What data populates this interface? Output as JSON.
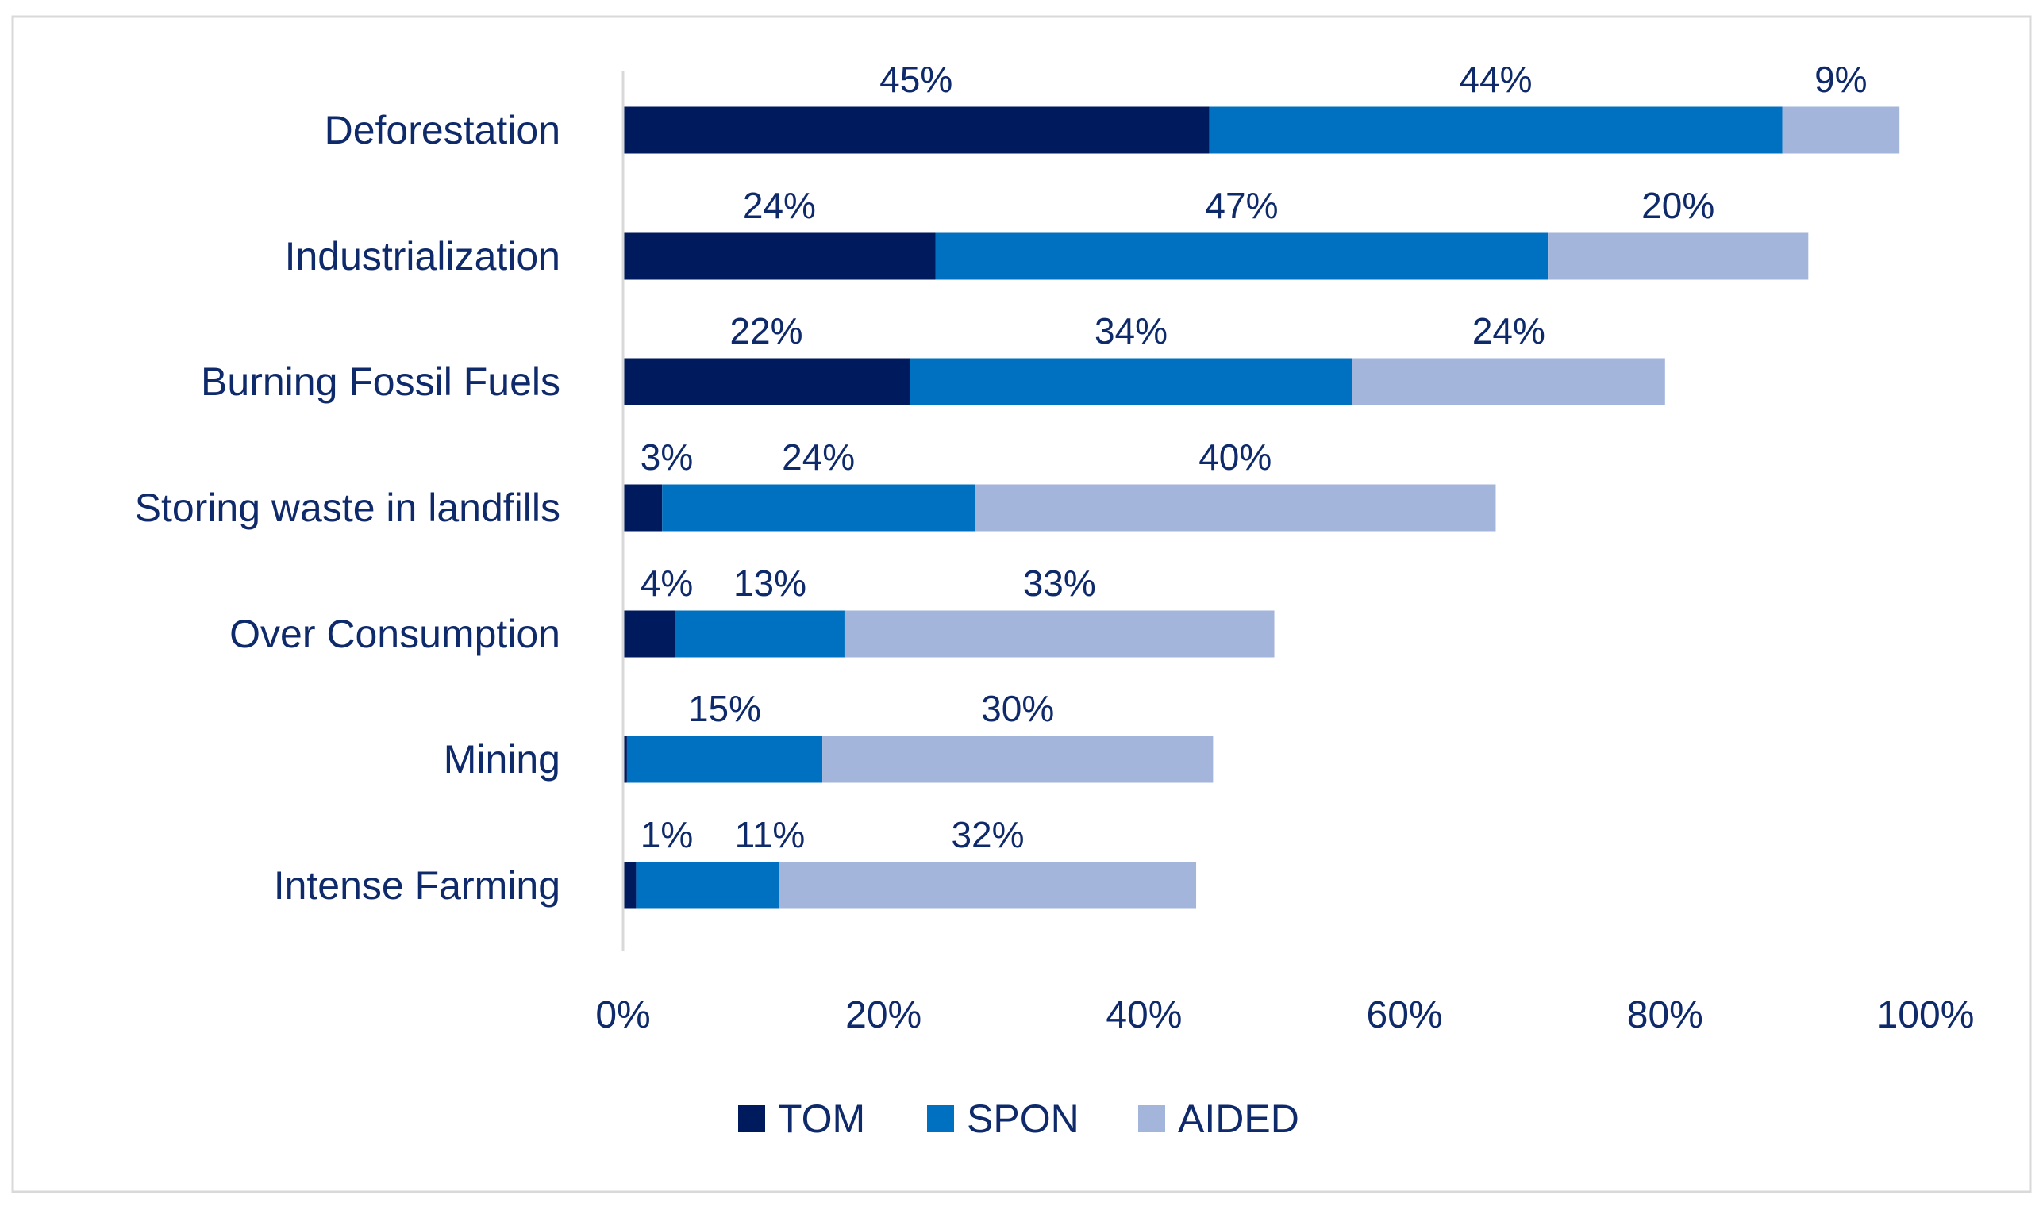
{
  "chart_data": {
    "type": "bar",
    "orientation": "horizontal",
    "stacked": true,
    "title": "",
    "xlabel": "",
    "ylabel": "",
    "xlim": [
      0,
      100
    ],
    "x_ticks": [
      "0%",
      "20%",
      "40%",
      "60%",
      "80%",
      "100%"
    ],
    "grid": false,
    "legend_position": "bottom",
    "categories": [
      "Deforestation",
      "Industrialization",
      "Burning Fossil Fuels",
      "Storing waste in landfills",
      "Over Consumption",
      "Mining",
      "Intense Farming"
    ],
    "series": [
      {
        "name": "TOM",
        "color": "#001a5e",
        "values": [
          45,
          24,
          22,
          3,
          4,
          0.3,
          1
        ],
        "labels": [
          "45%",
          "24%",
          "22%",
          "3%",
          "4%",
          null,
          "1%"
        ]
      },
      {
        "name": "SPON",
        "color": "#0070c0",
        "values": [
          44,
          47,
          34,
          24,
          13,
          15,
          11
        ],
        "labels": [
          "44%",
          "47%",
          "34%",
          "24%",
          "13%",
          "15%",
          "11%"
        ]
      },
      {
        "name": "AIDED",
        "color": "#a3b5db",
        "values": [
          9,
          20,
          24,
          40,
          33,
          30,
          32
        ],
        "labels": [
          "9%",
          "20%",
          "24%",
          "40%",
          "33%",
          "30%",
          "32%"
        ]
      }
    ]
  }
}
